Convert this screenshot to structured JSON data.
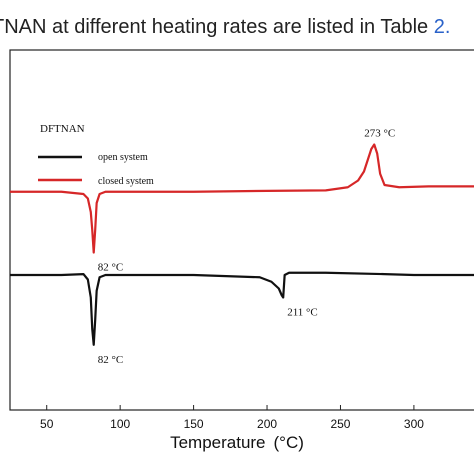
{
  "caption": {
    "text": "TNAN at different heating rates are listed in Table",
    "ref": "2."
  },
  "chart_data": {
    "type": "line",
    "xlabel": "Temperature",
    "xunit": "(°C)",
    "xlim": [
      25,
      345
    ],
    "ylim": [
      -3.0,
      5.0
    ],
    "xticks": [
      50,
      100,
      150,
      200,
      250,
      300
    ],
    "legend": {
      "title": "DFTNAN",
      "placement": "top-left"
    },
    "series": [
      {
        "name": "open  system",
        "color": "#111111",
        "x": [
          25,
          60,
          75,
          78,
          80,
          81,
          82,
          83,
          84,
          86,
          90,
          110,
          150,
          195,
          203,
          208,
          210,
          211,
          212,
          215,
          240,
          280,
          300,
          345
        ],
        "y": [
          0.0,
          0.0,
          0.02,
          -0.1,
          -0.5,
          -1.2,
          -1.55,
          -1.0,
          -0.35,
          -0.05,
          0.0,
          0.0,
          0.0,
          -0.05,
          -0.15,
          -0.3,
          -0.45,
          -0.5,
          0.0,
          0.05,
          0.05,
          0.02,
          0.0,
          0.0
        ]
      },
      {
        "name": "closed system",
        "color": "#d62728",
        "x": [
          25,
          60,
          75,
          78,
          80,
          81,
          82,
          83,
          84,
          86,
          90,
          110,
          150,
          200,
          240,
          255,
          262,
          266,
          269,
          271,
          273,
          275,
          277,
          280,
          290,
          310,
          345
        ],
        "y": [
          1.85,
          1.85,
          1.8,
          1.7,
          1.4,
          1.0,
          0.5,
          1.0,
          1.6,
          1.8,
          1.85,
          1.85,
          1.85,
          1.87,
          1.88,
          1.95,
          2.1,
          2.3,
          2.6,
          2.8,
          2.9,
          2.7,
          2.25,
          2.0,
          1.95,
          1.97,
          1.97
        ]
      }
    ],
    "annotations": [
      {
        "text": "273 °C",
        "x": 273,
        "y": 2.9
      },
      {
        "text": "82 °C",
        "x": 82,
        "y": 0.5
      },
      {
        "text": "211 °C",
        "x": 211,
        "y": -0.5
      },
      {
        "text": "82 °C",
        "x": 82,
        "y": -1.55
      }
    ]
  }
}
